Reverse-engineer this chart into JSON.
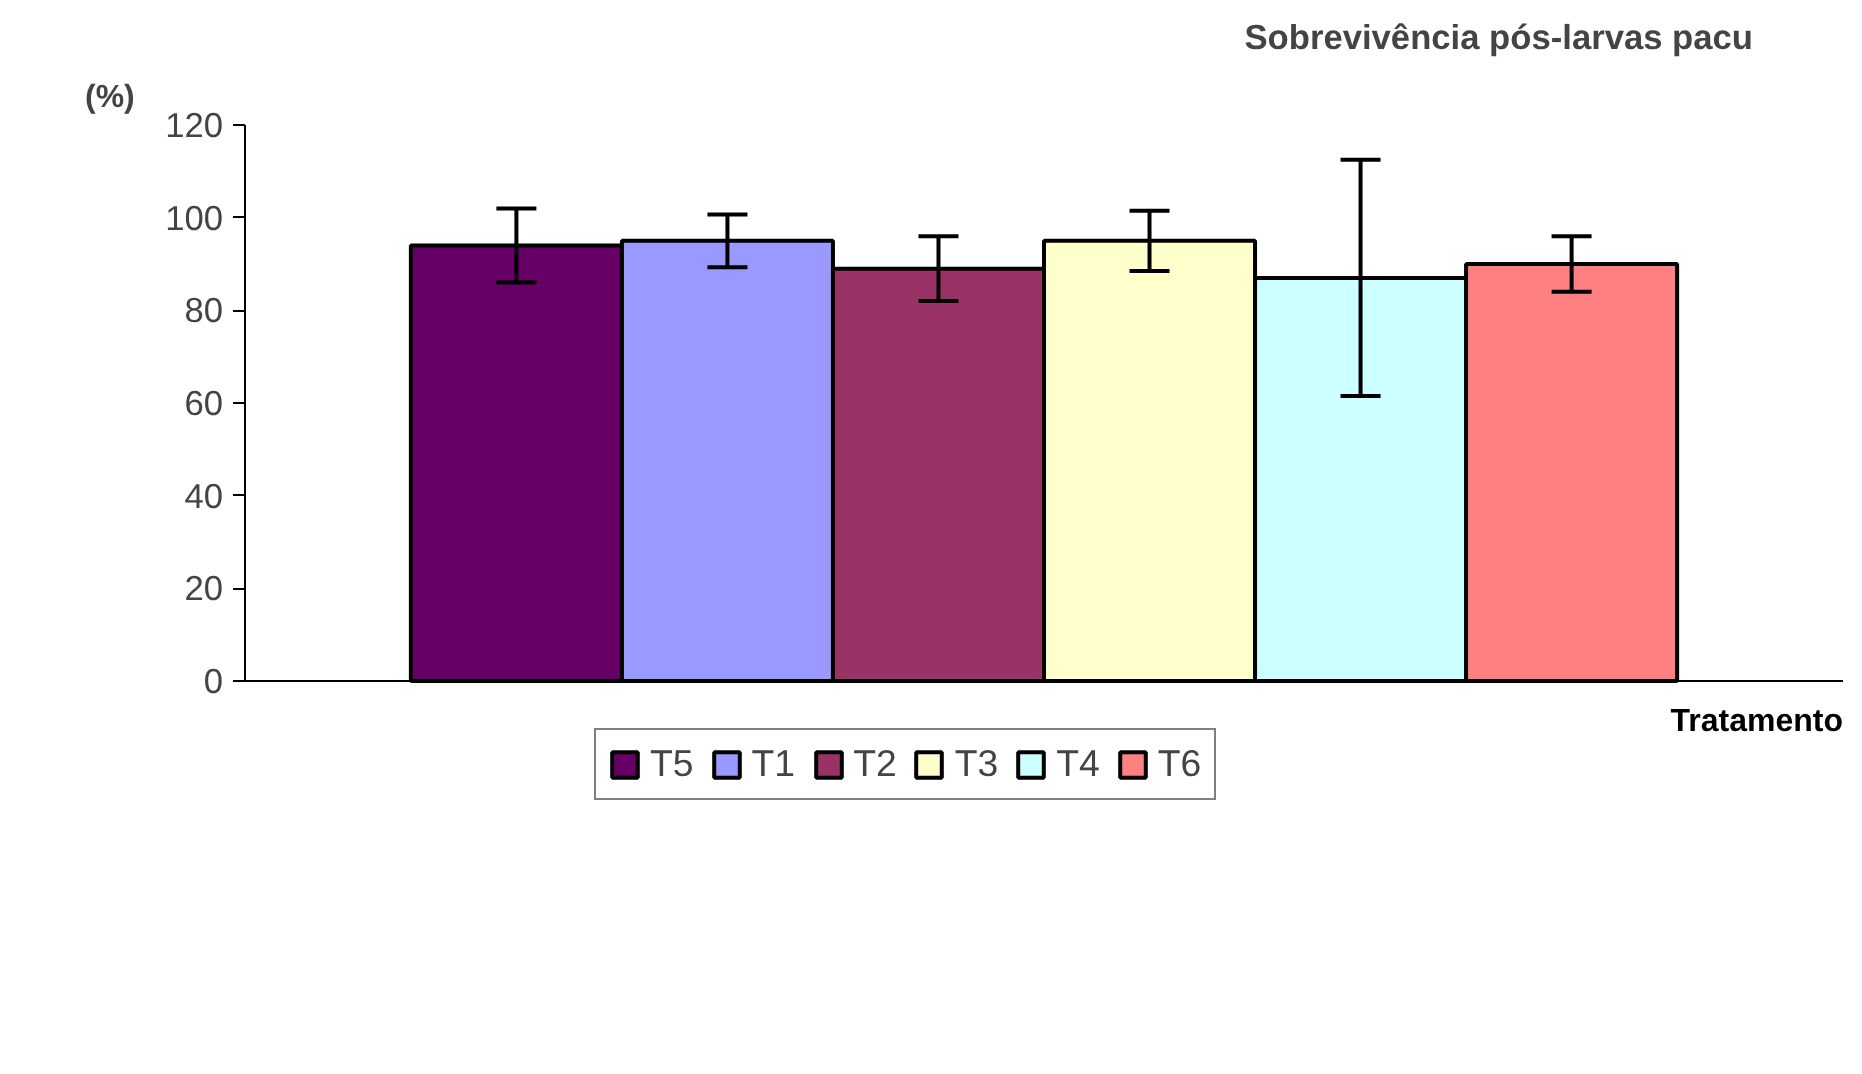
{
  "chart_data": {
    "type": "bar",
    "title": "Sobrevivência pós-larvas pacu",
    "xlabel": "Tratamento",
    "ylabel": "(%)",
    "categories": [
      null
    ],
    "series": [
      {
        "name": "T5",
        "color": "#660066",
        "values": [
          94
        ],
        "errors": [
          8
        ]
      },
      {
        "name": "T1",
        "color": "#9999ff",
        "values": [
          95
        ],
        "errors": [
          5.7
        ]
      },
      {
        "name": "T2",
        "color": "#993366",
        "values": [
          89
        ],
        "errors": [
          7
        ]
      },
      {
        "name": "T3",
        "color": "#ffffcc",
        "values": [
          95
        ],
        "errors": [
          6.5
        ]
      },
      {
        "name": "T4",
        "color": "#ccffff",
        "values": [
          87
        ],
        "errors": [
          25.5
        ]
      },
      {
        "name": "T6",
        "color": "#ff8080",
        "values": [
          90
        ],
        "errors": [
          6
        ]
      }
    ],
    "ylim": [
      0,
      120
    ],
    "yticks": [
      0,
      20,
      40,
      60,
      80,
      100,
      120
    ],
    "grid": false,
    "legend": "bottom"
  }
}
